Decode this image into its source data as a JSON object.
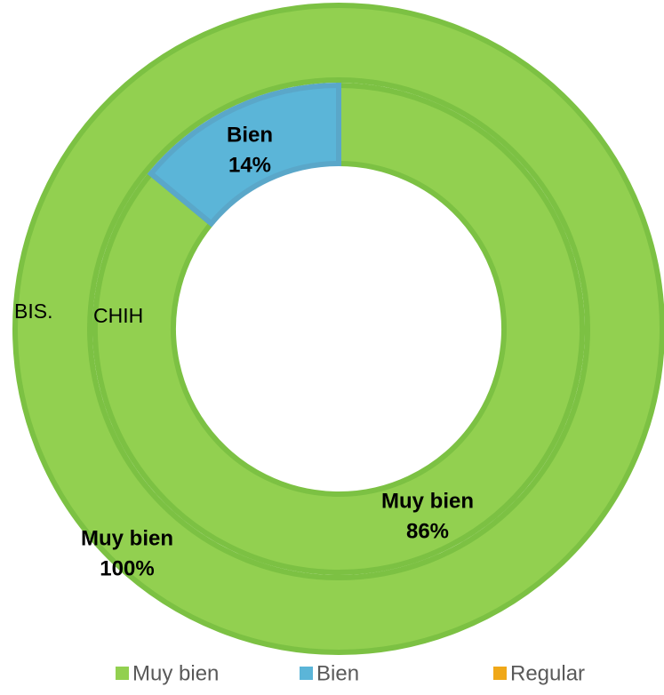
{
  "chart_data": {
    "type": "doughnut",
    "categories": [
      "Muy bien",
      "Bien",
      "Regular"
    ],
    "colors": [
      "#92d050",
      "#5bb5d8",
      "#f0a818"
    ],
    "series": [
      {
        "name": "BIS.",
        "values": [
          100,
          0,
          0
        ],
        "value_labels": [
          "100%",
          null,
          null
        ]
      },
      {
        "name": "CHIH",
        "values": [
          86,
          14,
          0
        ],
        "value_labels": [
          "86%",
          "14%",
          null
        ]
      }
    ],
    "legend": "bottom"
  }
}
